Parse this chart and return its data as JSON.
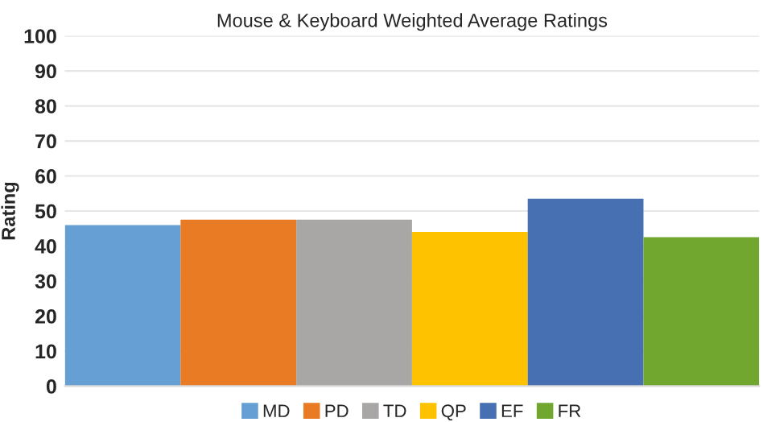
{
  "chart_data": {
    "type": "bar",
    "title": "Mouse & Keyboard Weighted Average Ratings",
    "ylabel": "Rating",
    "categories": [
      null
    ],
    "series": [
      {
        "name": "MD",
        "color": "#659fd3",
        "values": [
          46
        ]
      },
      {
        "name": "PD",
        "color": "#e97b25",
        "values": [
          47.5
        ]
      },
      {
        "name": "TD",
        "color": "#a8a7a5",
        "values": [
          47.5
        ]
      },
      {
        "name": "QP",
        "color": "#fec200",
        "values": [
          44
        ]
      },
      {
        "name": "EF",
        "color": "#4770b3",
        "values": [
          53.5
        ]
      },
      {
        "name": "FR",
        "color": "#72a72f",
        "values": [
          42.5
        ]
      }
    ],
    "ylim": [
      0,
      100
    ],
    "yticks": [
      0,
      10,
      20,
      30,
      40,
      50,
      60,
      70,
      80,
      90,
      100
    ],
    "grid": "y",
    "legend": "bottom"
  }
}
